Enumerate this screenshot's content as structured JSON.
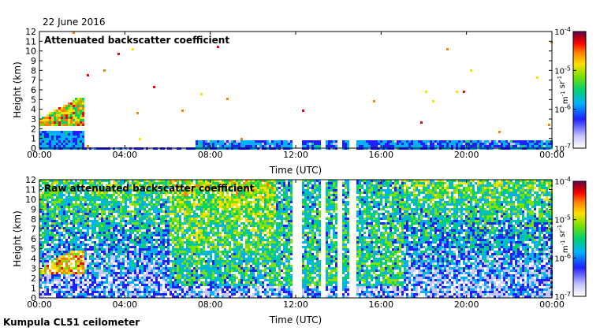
{
  "date": "22 June 2016",
  "footer": "Kumpula CL51 ceilometer",
  "colors": {
    "scale": [
      "#ffffff",
      "#d9d9ff",
      "#2020ff",
      "#00c0ff",
      "#00d080",
      "#40e000",
      "#ffe000",
      "#ff8000",
      "#ff0000",
      "#a00000",
      "#6a0040"
    ]
  },
  "chart_data": [
    {
      "type": "heatmap",
      "title": "Attenuated backscatter coefficient",
      "xlabel": "Time (UTC)",
      "ylabel": "Height (km)",
      "xlim": [
        "00:00",
        "24:00"
      ],
      "ylim": [
        0,
        12
      ],
      "x_ticks": [
        "00:00",
        "04:00",
        "08:00",
        "12:00",
        "16:00",
        "20:00",
        "00:00"
      ],
      "y_ticks": [
        0,
        1,
        2,
        3,
        4,
        5,
        6,
        7,
        8,
        9,
        10,
        11,
        12
      ],
      "colorbar": {
        "label": "m-1 sr-1",
        "scale": "log",
        "range": [
          1e-07,
          0.0001
        ],
        "ticks": [
          "10-7",
          "10-6",
          "10-5",
          "10-4"
        ]
      },
      "data_gaps_hours": [
        [
          11.8,
          12.2
        ],
        [
          13.1,
          13.4
        ],
        [
          13.9,
          14.1
        ],
        [
          14.5,
          14.8
        ]
      ]
    },
    {
      "type": "heatmap",
      "title": "Raw attenuated backscatter coefficient",
      "xlabel": "Time (UTC)",
      "ylabel": "Height (km)",
      "xlim": [
        "00:00",
        "24:00"
      ],
      "ylim": [
        0,
        12
      ],
      "x_ticks": [
        "00:00",
        "04:00",
        "08:00",
        "12:00",
        "16:00",
        "20:00",
        "00:00"
      ],
      "y_ticks": [
        0,
        1,
        2,
        3,
        4,
        5,
        6,
        7,
        8,
        9,
        10,
        11,
        12
      ],
      "colorbar": {
        "label": "m-1 sr-1",
        "scale": "log",
        "range": [
          1e-07,
          0.0001
        ],
        "ticks": [
          "10-7",
          "10-6",
          "10-5",
          "10-4"
        ]
      },
      "data_gaps_hours": [
        [
          11.8,
          12.2
        ],
        [
          13.1,
          13.4
        ],
        [
          13.9,
          14.1
        ],
        [
          14.5,
          14.8
        ]
      ]
    }
  ]
}
